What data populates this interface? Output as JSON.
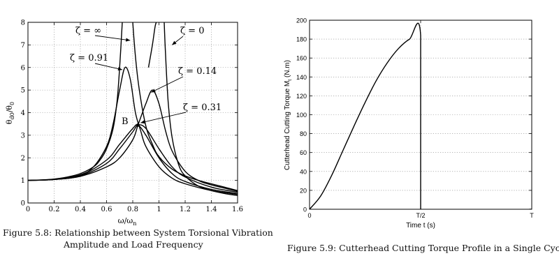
{
  "figures": [
    {
      "caption_lines": [
        "Figure 5.8: Relationship between System Torsional Vibration",
        "Amplitude and Load Frequency"
      ],
      "chart_data": {
        "type": "line",
        "xlabel": "ω/ω",
        "xlabel_sub": "n",
        "ylabel": "θ",
        "ylabel_sub1": "d0",
        "ylabel_mid": "/θ",
        "ylabel_sub2": "0",
        "xlim": [
          0,
          1.6
        ],
        "ylim": [
          0,
          8
        ],
        "xticks": [
          0,
          0.2,
          0.4,
          0.6,
          0.8,
          1,
          1.2,
          1.4,
          1.6
        ],
        "yticks": [
          0,
          1,
          2,
          3,
          4,
          5,
          6,
          7,
          8
        ],
        "grid": true,
        "point_label": "B",
        "point": {
          "x": 0.84,
          "y": 3.45
        },
        "annotations": [
          {
            "text": "ζ = ∞",
            "target": [
              0.78,
              7.2
            ]
          },
          {
            "text": "ζ = 0",
            "target": [
              1.1,
              7.0
            ]
          },
          {
            "text": "ζ = 0.91",
            "target": [
              0.72,
              5.9
            ]
          },
          {
            "text": "ζ = 0.14",
            "target": [
              0.94,
              4.9
            ]
          },
          {
            "text": "ζ = 0.31",
            "target": [
              0.86,
              3.55
            ]
          }
        ],
        "series": [
          {
            "x": [
              0,
              0.1,
              0.2,
              0.3,
              0.4,
              0.5,
              0.55,
              0.6,
              0.65,
              0.68,
              0.7,
              0.72
            ],
            "y": [
              1.0,
              1.02,
              1.06,
              1.15,
              1.3,
              1.6,
              1.9,
              2.4,
              3.3,
              4.5,
              6.0,
              8.0
            ]
          },
          {
            "x": [
              0.8,
              0.82,
              0.85,
              0.9,
              0.95,
              1.0,
              1.1,
              1.2,
              1.3,
              1.4,
              1.5,
              1.6
            ],
            "y": [
              8.0,
              6.5,
              5.0,
              3.4,
              2.6,
              2.05,
              1.5,
              1.2,
              1.0,
              0.85,
              0.7,
              0.55
            ]
          },
          {
            "x": [
              0.92,
              0.95,
              0.97,
              0.98
            ],
            "y": [
              6.0,
              7.0,
              7.8,
              8.0
            ]
          },
          {
            "x": [
              1.04,
              1.05,
              1.07,
              1.1,
              1.15,
              1.2,
              1.3,
              1.4,
              1.5,
              1.6
            ],
            "y": [
              8.0,
              6.6,
              4.5,
              2.9,
              1.7,
              1.2,
              0.75,
              0.55,
              0.42,
              0.33
            ]
          },
          {
            "x": [
              0,
              0.2,
              0.4,
              0.5,
              0.6,
              0.65,
              0.7,
              0.74,
              0.78,
              0.82,
              0.86,
              0.9,
              1.0,
              1.1,
              1.2,
              1.4,
              1.6
            ],
            "y": [
              1.0,
              1.05,
              1.25,
              1.6,
              2.5,
              3.5,
              5.0,
              6.0,
              5.5,
              4.0,
              3.2,
              2.5,
              1.6,
              1.1,
              0.85,
              0.55,
              0.38
            ]
          },
          {
            "x": [
              0,
              0.2,
              0.4,
              0.6,
              0.7,
              0.8,
              0.84,
              0.9,
              0.95,
              1.0,
              1.05,
              1.1,
              1.2,
              1.3,
              1.4,
              1.6
            ],
            "y": [
              1.0,
              1.04,
              1.18,
              1.6,
              2.0,
              2.8,
              3.45,
              4.4,
              5.0,
              4.4,
              3.2,
              2.3,
              1.4,
              1.0,
              0.8,
              0.52
            ]
          },
          {
            "x": [
              0,
              0.2,
              0.4,
              0.6,
              0.7,
              0.8,
              0.84,
              0.9,
              1.0,
              1.1,
              1.2,
              1.4,
              1.6
            ],
            "y": [
              1.0,
              1.04,
              1.2,
              1.75,
              2.4,
              3.15,
              3.45,
              3.3,
              2.4,
              1.6,
              1.15,
              0.7,
              0.48
            ]
          },
          {
            "x": [
              0,
              0.2,
              0.4,
              0.6,
              0.7,
              0.8,
              0.84,
              0.9,
              1.0,
              1.1,
              1.2,
              1.4,
              1.6
            ],
            "y": [
              1.0,
              1.04,
              1.22,
              1.9,
              2.6,
              3.3,
              3.45,
              3.0,
              2.0,
              1.3,
              0.95,
              0.6,
              0.42
            ]
          }
        ]
      }
    },
    {
      "caption_lines": [
        "Figure 5.9: Cutterhead Cutting Torque Profile in a Single Cycle"
      ],
      "chart_data": {
        "type": "line",
        "xlabel": "Time t (s)",
        "ylabel": "Cutterhead Cutting Torque M",
        "ylabel_sub": "t",
        "ylabel_unit": " (N.m)",
        "xlim": [
          0,
          1
        ],
        "ylim": [
          0,
          200
        ],
        "xtick_values": [
          0,
          0.5,
          1
        ],
        "xtick_labels": [
          "0",
          "T/2",
          "T"
        ],
        "yticks": [
          0,
          20,
          40,
          60,
          80,
          100,
          120,
          140,
          160,
          180,
          200
        ],
        "grid": true,
        "series": [
          {
            "x": [
              0,
              0.05,
              0.1,
              0.15,
              0.2,
              0.25,
              0.3,
              0.35,
              0.4,
              0.45,
              0.5,
              0.5,
              1.0
            ],
            "y": [
              0,
              14,
              36,
              62,
              88,
              113,
              136,
              155,
              170,
              180,
              184,
              0,
              0
            ]
          }
        ]
      }
    }
  ]
}
